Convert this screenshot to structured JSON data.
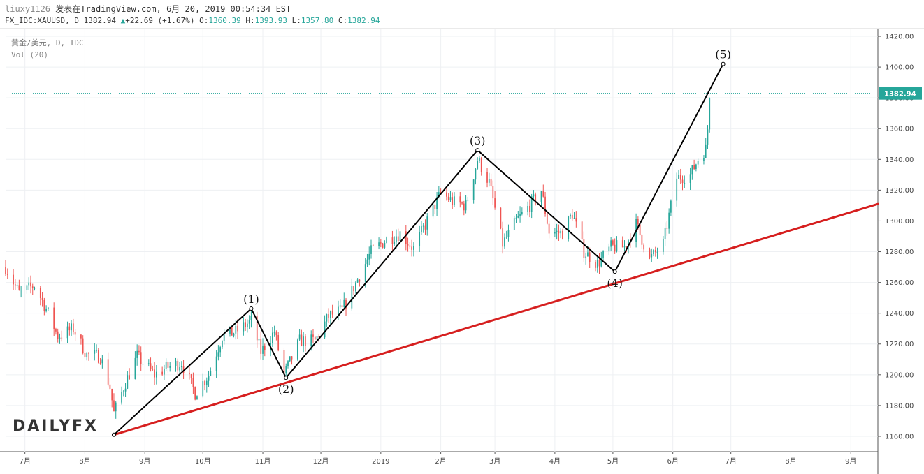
{
  "header": {
    "user": "liuxy1126",
    "published": "发表在TradingView.com, 6月 20, 2019 00:54:34 EST",
    "symbol": "FX_IDC:XAUUSD, D",
    "last": "1382.94",
    "change": "+22.69 (+1.67%)",
    "o_label": "O:",
    "o": "1360.39",
    "h_label": "H:",
    "h": "1393.93",
    "l_label": "L:",
    "l": "1357.80",
    "c_label": "C:",
    "c": "1382.94"
  },
  "legend": {
    "series": "黄金/美元, D, IDC",
    "volume": "Vol (20)"
  },
  "brand": "DAILYFX",
  "colors": {
    "up": "#26a69a",
    "down": "#ef5350",
    "trendline": "#d61f1f",
    "wave": "#000000",
    "price_tag": "#26a69a",
    "grid": "#eef0f3"
  },
  "chart_data": {
    "type": "candlestick",
    "title": "黄金/美元, D, IDC",
    "ylim": [
      1150,
      1425
    ],
    "y_ticks": [
      1160,
      1180,
      1200,
      1220,
      1240,
      1260,
      1280,
      1300,
      1320,
      1340,
      1360,
      1380,
      1400,
      1420
    ],
    "y_tick_labels": [
      "1160.00",
      "1180.00",
      "1200.00",
      "1220.00",
      "1240.00",
      "1260.00",
      "1280.00",
      "1300.00",
      "1320.00",
      "1340.00",
      "1360.00",
      "1380.00",
      "1400.00",
      "1420.00"
    ],
    "x_ticks": [
      "2018-07-01",
      "2018-08-01",
      "2018-09-01",
      "2018-10-01",
      "2018-11-01",
      "2018-12-01",
      "2019-01-01",
      "2019-02-01",
      "2019-03-01",
      "2019-04-01",
      "2019-05-01",
      "2019-06-01",
      "2019-07-01",
      "2019-08-01",
      "2019-09-01"
    ],
    "x_tick_labels": [
      "7月",
      "8月",
      "9月",
      "10月",
      "11月",
      "12月",
      "2019",
      "2月",
      "3月",
      "4月",
      "5月",
      "6月",
      "7月",
      "8月",
      "9月"
    ],
    "xlim": [
      "2018-06-21",
      "2019-09-15"
    ],
    "last_price": 1382.94,
    "last_price_label": "1382.94",
    "price_path": [
      [
        "2018-06-21",
        1270
      ],
      [
        "2018-06-28",
        1253
      ],
      [
        "2018-07-06",
        1258
      ],
      [
        "2018-07-12",
        1243
      ],
      [
        "2018-07-18",
        1225
      ],
      [
        "2018-07-26",
        1230
      ],
      [
        "2018-08-02",
        1213
      ],
      [
        "2018-08-09",
        1212
      ],
      [
        "2018-08-14",
        1192
      ],
      [
        "2018-08-16",
        1175
      ],
      [
        "2018-08-22",
        1195
      ],
      [
        "2018-08-28",
        1212
      ],
      [
        "2018-09-06",
        1200
      ],
      [
        "2018-09-13",
        1205
      ],
      [
        "2018-09-20",
        1208
      ],
      [
        "2018-09-27",
        1188
      ],
      [
        "2018-10-04",
        1200
      ],
      [
        "2018-10-11",
        1225
      ],
      [
        "2018-10-18",
        1228
      ],
      [
        "2018-10-26",
        1235
      ],
      [
        "2018-10-31",
        1215
      ],
      [
        "2018-11-07",
        1228
      ],
      [
        "2018-11-12",
        1200
      ],
      [
        "2018-11-20",
        1222
      ],
      [
        "2018-11-28",
        1222
      ],
      [
        "2018-12-05",
        1238
      ],
      [
        "2018-12-12",
        1242
      ],
      [
        "2018-12-20",
        1262
      ],
      [
        "2018-12-27",
        1280
      ],
      [
        "2019-01-04",
        1288
      ],
      [
        "2019-01-11",
        1292
      ],
      [
        "2019-01-18",
        1282
      ],
      [
        "2019-01-25",
        1300
      ],
      [
        "2019-02-01",
        1318
      ],
      [
        "2019-02-08",
        1312
      ],
      [
        "2019-02-14",
        1310
      ],
      [
        "2019-02-20",
        1340
      ],
      [
        "2019-02-26",
        1325
      ],
      [
        "2019-03-05",
        1285
      ],
      [
        "2019-03-12",
        1300
      ],
      [
        "2019-03-19",
        1310
      ],
      [
        "2019-03-25",
        1320
      ],
      [
        "2019-03-29",
        1293
      ],
      [
        "2019-04-05",
        1292
      ],
      [
        "2019-04-10",
        1305
      ],
      [
        "2019-04-16",
        1280
      ],
      [
        "2019-04-23",
        1272
      ],
      [
        "2019-04-30",
        1283
      ],
      [
        "2019-05-07",
        1283
      ],
      [
        "2019-05-13",
        1298
      ],
      [
        "2019-05-20",
        1275
      ],
      [
        "2019-05-27",
        1285
      ],
      [
        "2019-06-03",
        1328
      ],
      [
        "2019-06-10",
        1330
      ],
      [
        "2019-06-14",
        1340
      ],
      [
        "2019-06-18",
        1347
      ],
      [
        "2019-06-19",
        1360
      ],
      [
        "2019-06-20",
        1382.94
      ]
    ],
    "wave_points": [
      {
        "label": "(1)",
        "date": "2018-10-26",
        "price": 1243
      },
      {
        "label": "(2)",
        "date": "2018-11-13",
        "price": 1198
      },
      {
        "label": "(3)",
        "date": "2019-02-20",
        "price": 1346
      },
      {
        "label": "(4)",
        "date": "2019-05-02",
        "price": 1267
      },
      {
        "label": "(5)",
        "date": "2019-06-27",
        "price": 1402
      }
    ],
    "wave_start": {
      "date": "2018-08-16",
      "price": 1161
    },
    "trendline": {
      "from": {
        "date": "2018-08-16",
        "price": 1161
      },
      "to": {
        "date": "2019-09-15",
        "price": 1311
      }
    }
  }
}
